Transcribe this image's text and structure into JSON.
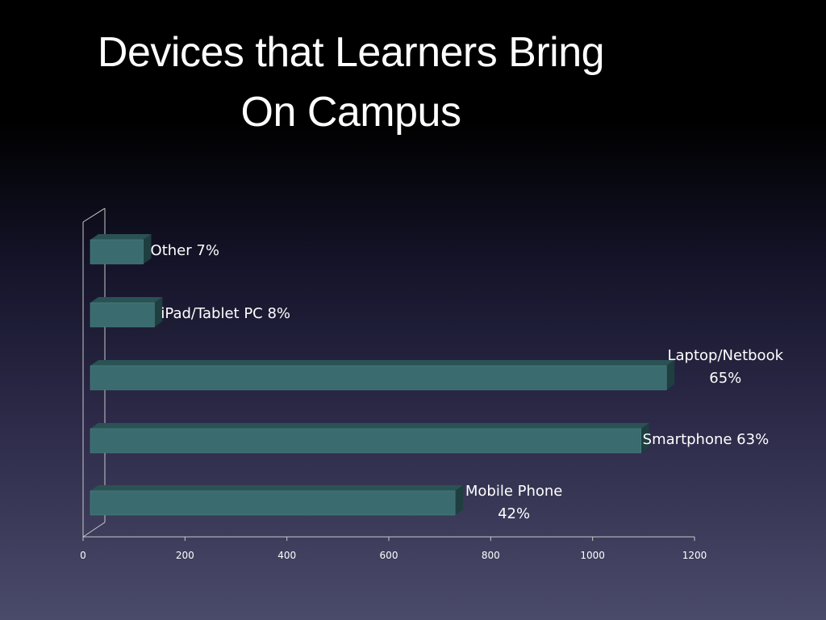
{
  "title": {
    "line1": "Devices that Learners Bring",
    "line2": "On Campus"
  },
  "colors": {
    "bar_front": "#3a6b6e",
    "bar_top": "#2a5254",
    "bar_side": "#1e3e40",
    "axis": "#c8c8c8",
    "text": "#ffffff"
  },
  "chart_data": {
    "type": "bar",
    "orientation": "horizontal",
    "style": "3d",
    "categories": [
      "Mobile Phone",
      "Smartphone",
      "Laptop/Netbook",
      "iPad/Tablet PC",
      "Other"
    ],
    "values": [
      730,
      1095,
      1145,
      140,
      118
    ],
    "data_labels": [
      [
        "Mobile Phone",
        "42%"
      ],
      [
        "Smartphone 63%"
      ],
      [
        "Laptop/Netbook",
        "65%"
      ],
      [
        "iPad/Tablet PC 8%"
      ],
      [
        "Other 7%"
      ]
    ],
    "xlim": [
      0,
      1200
    ],
    "xticks": [
      "0",
      "200",
      "400",
      "600",
      "800",
      "1000",
      "1200"
    ],
    "grid": false,
    "legend": "none"
  }
}
